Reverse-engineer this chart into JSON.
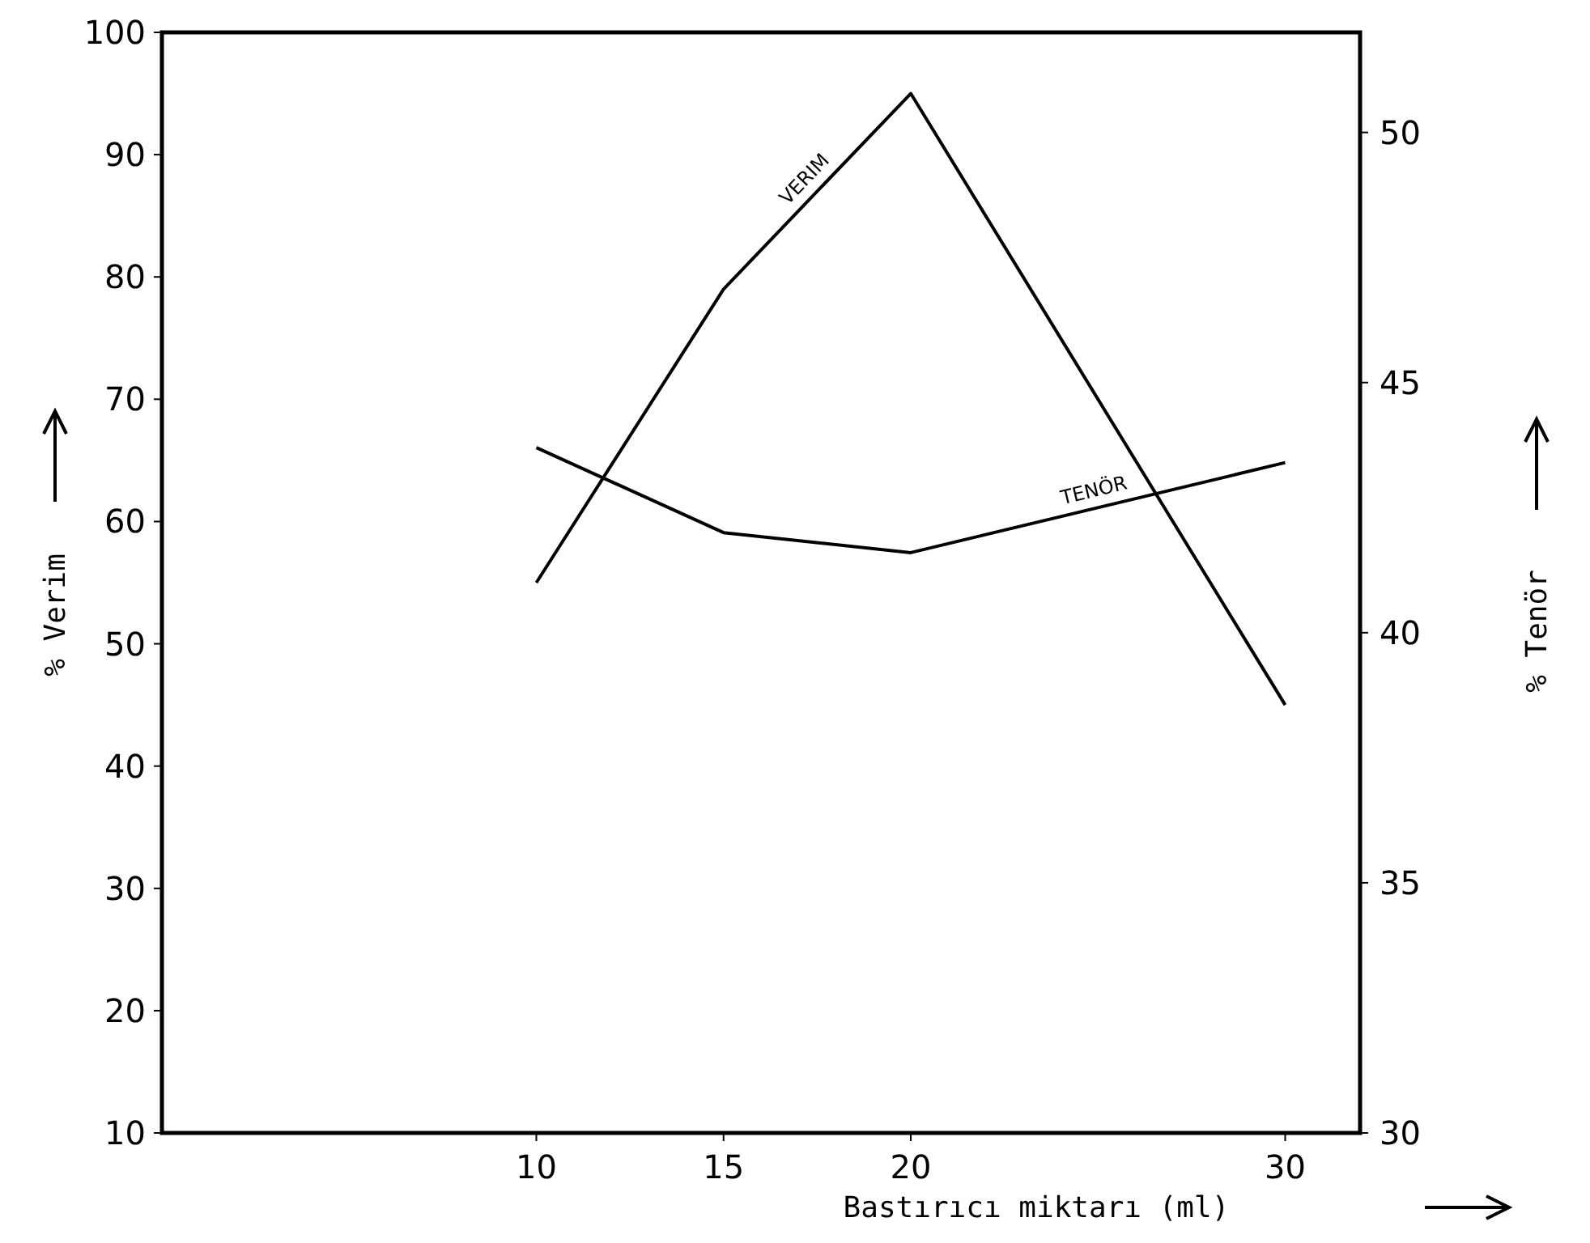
{
  "chart_data": {
    "type": "line",
    "xlabel": "Bastırıcı miktarı (ml)",
    "ylabel": "% Verim",
    "y2label": "% Tenör",
    "x": [
      10,
      15,
      20,
      30
    ],
    "xlim": [
      0,
      32
    ],
    "xticks": [
      10,
      15,
      20,
      30
    ],
    "ylim": [
      10,
      100
    ],
    "yticks": [
      10,
      20,
      30,
      40,
      50,
      60,
      70,
      80,
      90,
      100
    ],
    "y2lim": [
      30,
      52
    ],
    "y2ticks": [
      30,
      35,
      40,
      45,
      50
    ],
    "series": [
      {
        "name": "VERIM",
        "color": "#000000",
        "values": [
          55,
          79,
          95,
          45
        ]
      },
      {
        "name": "TENÖR",
        "color": "#000000",
        "axis": "y2",
        "values": [
          43.7,
          42,
          41.6,
          43.4
        ]
      }
    ],
    "marker": "none",
    "line_style": "solid",
    "grid": false
  }
}
